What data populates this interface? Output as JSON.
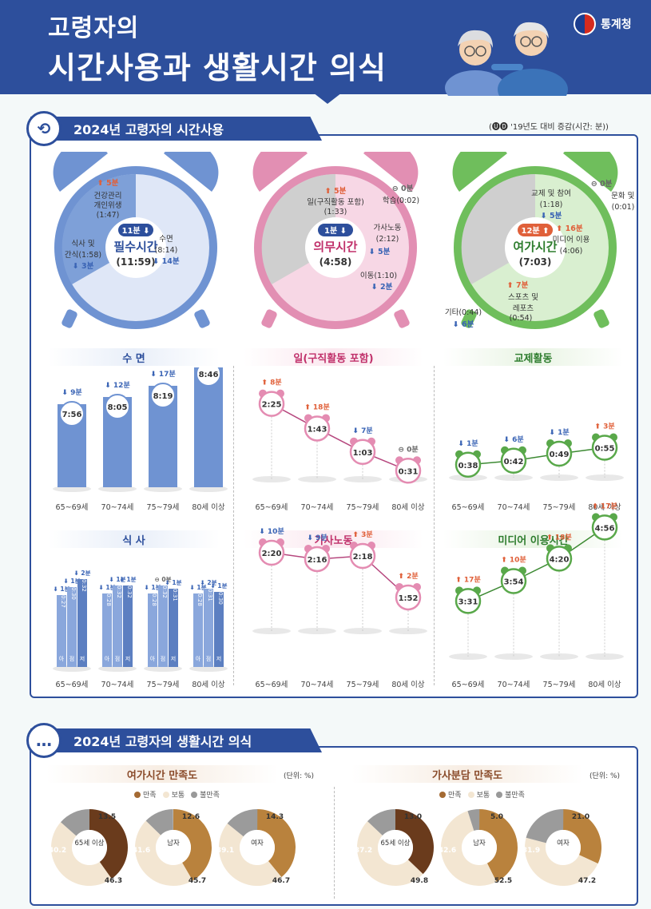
{
  "header": {
    "line1": "고령자의",
    "line2": "시간사용과 생활시간 의식",
    "logo_text": "통계청"
  },
  "section1": {
    "title": "2024년 고령자의 시간사용",
    "note": "(🅤🅓 '19년도 대비 증감(시간: 분))"
  },
  "section2": {
    "title": "2024년 고령자의 생활시간 의식"
  },
  "clocks": [
    {
      "title": "필수시간",
      "total": "(11:59)",
      "change": "11분",
      "dir": "down",
      "color": "#6f93d2",
      "labels": [
        {
          "text": "5분",
          "dir": "up"
        },
        {
          "text": "건강관리"
        },
        {
          "text": "개인위생"
        },
        {
          "text": "(1:47)"
        },
        {
          "text": "식사 및"
        },
        {
          "text": "간식(1:58)"
        },
        {
          "text": "3분",
          "dir": "down"
        },
        {
          "text": "수면"
        },
        {
          "text": "(8:14)"
        },
        {
          "text": "14분",
          "dir": "down"
        }
      ]
    },
    {
      "title": "의무시간",
      "total": "(4:58)",
      "change": "1분",
      "dir": "down",
      "color": "#e28fb3",
      "labels": [
        {
          "text": "5분",
          "dir": "up"
        },
        {
          "text": "일(구직활동 포함)"
        },
        {
          "text": "(1:33)"
        },
        {
          "text": "0분",
          "dir": "eq"
        },
        {
          "text": "학습(0:02)"
        },
        {
          "text": "가사노동"
        },
        {
          "text": "(2:12)"
        },
        {
          "text": "5분",
          "dir": "down"
        },
        {
          "text": "이동(1:10)"
        },
        {
          "text": "2분",
          "dir": "down"
        }
      ]
    },
    {
      "title": "여가시간",
      "total": "(7:03)",
      "change": "12분",
      "dir": "up",
      "color": "#6fbe5c",
      "labels": [
        {
          "text": "교제 및 참여"
        },
        {
          "text": "(1:18)"
        },
        {
          "text": "5분",
          "dir": "down"
        },
        {
          "text": "0분",
          "dir": "eq"
        },
        {
          "text": "문화 및 관광"
        },
        {
          "text": "(0:01)"
        },
        {
          "text": "16분",
          "dir": "up"
        },
        {
          "text": "미디어 이용"
        },
        {
          "text": "(4:06)"
        },
        {
          "text": "7분",
          "dir": "up"
        },
        {
          "text": "스포츠 및"
        },
        {
          "text": "레포츠"
        },
        {
          "text": "(0:54)"
        },
        {
          "text": "기타(0:44)"
        },
        {
          "text": "6분",
          "dir": "down"
        }
      ]
    }
  ],
  "age_groups": [
    "65~69세",
    "70~74세",
    "75~79세",
    "80세 이상"
  ],
  "meal_labels": [
    "아침",
    "점심",
    "저녁"
  ],
  "legend": [
    "만족",
    "보통",
    "불만족"
  ],
  "donut_titles": {
    "leisure": "여가시간 만족도",
    "housework": "가사분담 만족도",
    "unit": "(단위: %)"
  },
  "colors": {
    "blue": "#6f93d2",
    "pink": "#d9649a",
    "green": "#59a84a",
    "brown": "#a46a33",
    "navy": "#2d4f9c",
    "up": "#e0603a",
    "down": "#3a64b5",
    "eq": "#666666"
  },
  "chart_data": [
    {
      "id": "sleep",
      "type": "bar",
      "title": "수 면",
      "categories": [
        "65~69세",
        "70~74세",
        "75~79세",
        "80세 이상"
      ],
      "values": [
        7.933,
        8.083,
        8.317,
        8.767
      ],
      "value_labels": [
        "7:56",
        "8:05",
        "8:19",
        "8:46"
      ],
      "changes": [
        {
          "v": "9분",
          "d": "down"
        },
        {
          "v": "12분",
          "d": "down"
        },
        {
          "v": "17분",
          "d": "down"
        },
        {
          "v": "22분",
          "d": "down"
        }
      ]
    },
    {
      "id": "work",
      "type": "line",
      "title": "일(구직활동 포함)",
      "categories": [
        "65~69세",
        "70~74세",
        "75~79세",
        "80세 이상"
      ],
      "values": [
        2.417,
        1.717,
        1.05,
        0.517
      ],
      "value_labels": [
        "2:25",
        "1:43",
        "1:03",
        "0:31"
      ],
      "changes": [
        {
          "v": "8분",
          "d": "up"
        },
        {
          "v": "18분",
          "d": "up"
        },
        {
          "v": "7분",
          "d": "down"
        },
        {
          "v": "0분",
          "d": "eq"
        }
      ]
    },
    {
      "id": "social",
      "type": "line",
      "title": "교제활동",
      "categories": [
        "65~69세",
        "70~74세",
        "75~79세",
        "80세 이상"
      ],
      "values": [
        0.633,
        0.7,
        0.817,
        0.917
      ],
      "value_labels": [
        "0:38",
        "0:42",
        "0:49",
        "0:55"
      ],
      "changes": [
        {
          "v": "1분",
          "d": "down"
        },
        {
          "v": "6분",
          "d": "down"
        },
        {
          "v": "1분",
          "d": "down"
        },
        {
          "v": "3분",
          "d": "up"
        }
      ]
    },
    {
      "id": "meal",
      "type": "bar",
      "title": "식 사",
      "categories": [
        "65~69세",
        "70~74세",
        "75~79세",
        "80세 이상"
      ],
      "series": [
        {
          "name": "아침",
          "value_labels": [
            "0:27",
            "0:28",
            "0:28",
            "0:28"
          ],
          "changes": [
            {
              "v": "1분",
              "d": "down"
            },
            {
              "v": "1분",
              "d": "down"
            },
            {
              "v": "1분",
              "d": "down"
            },
            {
              "v": "1분",
              "d": "down"
            }
          ]
        },
        {
          "name": "점심",
          "value_labels": [
            "0:30",
            "0:32",
            "0:32",
            "0:31"
          ],
          "changes": [
            {
              "v": "1분",
              "d": "down"
            },
            {
              "v": "1분",
              "d": "down"
            },
            {
              "v": "0분",
              "d": "eq"
            },
            {
              "v": "2분",
              "d": "down"
            }
          ]
        },
        {
          "name": "저녁",
          "value_labels": [
            "0:32",
            "0:32",
            "0:31",
            "0:30"
          ],
          "changes": [
            {
              "v": "2분",
              "d": "down"
            },
            {
              "v": "1분",
              "d": "down"
            },
            {
              "v": "1분",
              "d": "down"
            },
            {
              "v": "1분",
              "d": "down"
            }
          ]
        }
      ]
    },
    {
      "id": "housework",
      "type": "line",
      "title": "가사노동",
      "categories": [
        "65~69세",
        "70~74세",
        "75~79세",
        "80세 이상"
      ],
      "values": [
        2.333,
        2.267,
        2.3,
        1.867
      ],
      "value_labels": [
        "2:20",
        "2:16",
        "2:18",
        "1:52"
      ],
      "changes": [
        {
          "v": "10분",
          "d": "down"
        },
        {
          "v": "9분",
          "d": "down"
        },
        {
          "v": "3분",
          "d": "up"
        },
        {
          "v": "2분",
          "d": "up"
        }
      ]
    },
    {
      "id": "media",
      "type": "line",
      "title": "미디어 이용시간",
      "categories": [
        "65~69세",
        "70~74세",
        "75~79세",
        "80세 이상"
      ],
      "values": [
        3.517,
        3.9,
        4.333,
        4.933
      ],
      "value_labels": [
        "3:31",
        "3:54",
        "4:20",
        "4:56"
      ],
      "changes": [
        {
          "v": "17분",
          "d": "up"
        },
        {
          "v": "10분",
          "d": "up"
        },
        {
          "v": "18분",
          "d": "up"
        },
        {
          "v": "17분",
          "d": "up"
        }
      ]
    },
    {
      "id": "leisure_sat",
      "type": "pie",
      "title": "여가시간 만족도",
      "groups": [
        {
          "name": "65세 이상",
          "values": [
            40.2,
            46.3,
            13.5
          ]
        },
        {
          "name": "남자",
          "values": [
            41.6,
            45.7,
            12.6
          ]
        },
        {
          "name": "여자",
          "values": [
            39.1,
            46.7,
            14.3
          ]
        }
      ]
    },
    {
      "id": "housework_sat",
      "type": "pie",
      "title": "가사분담 만족도",
      "groups": [
        {
          "name": "65세 이상",
          "values": [
            37.2,
            49.8,
            13.0
          ]
        },
        {
          "name": "남자",
          "values": [
            42.6,
            52.5,
            5.0
          ]
        },
        {
          "name": "여자",
          "values": [
            31.9,
            47.2,
            21.0
          ]
        }
      ]
    }
  ]
}
